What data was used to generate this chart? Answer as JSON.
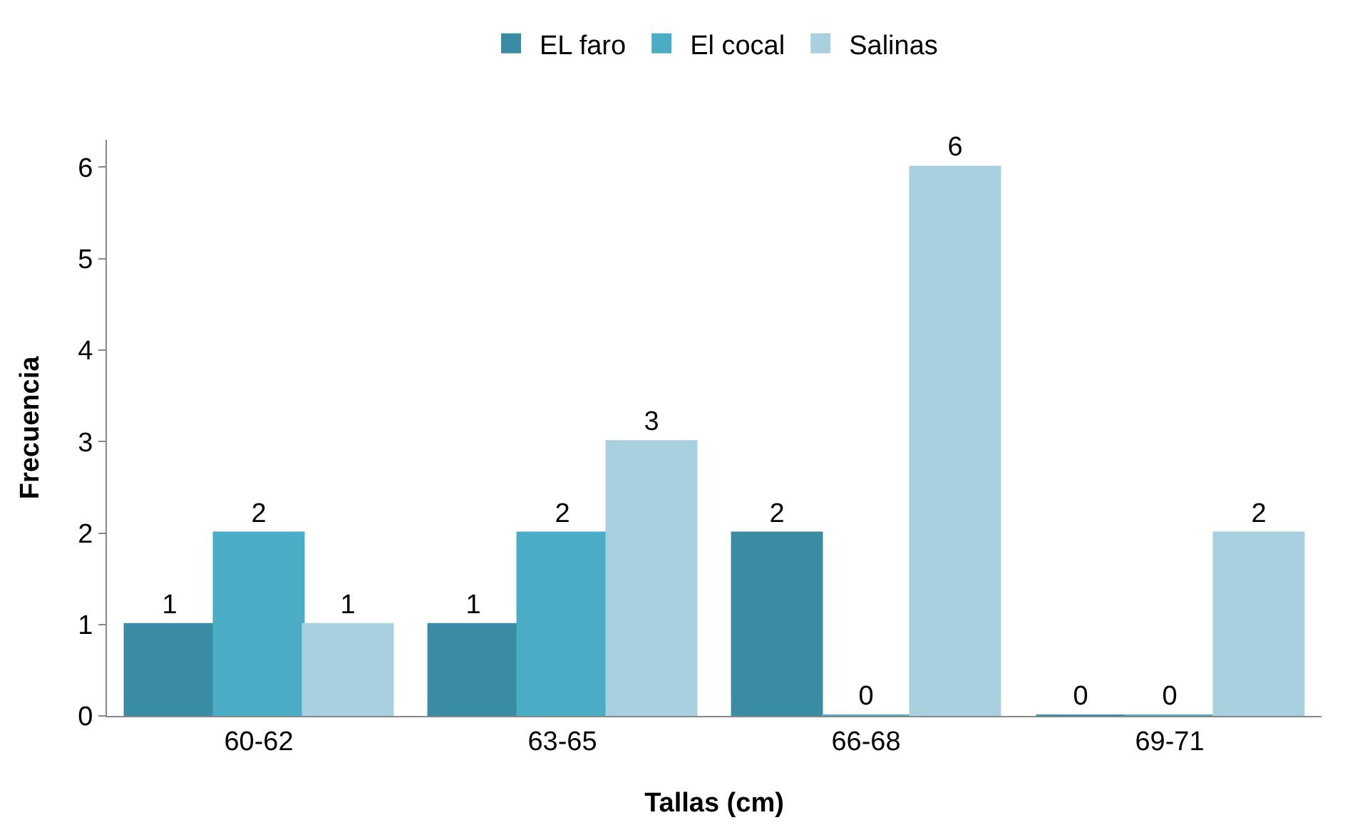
{
  "chart_data": {
    "type": "bar",
    "xlabel": "Tallas (cm)",
    "ylabel": "Frecuencia",
    "categories": [
      "60-62",
      "63-65",
      "66-68",
      "69-71"
    ],
    "series": [
      {
        "name": "EL faro",
        "color": "#3a8ca4",
        "values": [
          1,
          1,
          2,
          0
        ]
      },
      {
        "name": "El cocal",
        "color": "#4bacc6",
        "values": [
          2,
          2,
          0,
          0
        ]
      },
      {
        "name": "Salinas",
        "color": "#a9d0df",
        "values": [
          1,
          3,
          6,
          2
        ]
      }
    ],
    "ylim": [
      0,
      6.3
    ],
    "yticks": [
      0,
      1,
      2,
      3,
      4,
      5,
      6
    ],
    "grid": false,
    "legend": "top",
    "data_labels": true
  }
}
